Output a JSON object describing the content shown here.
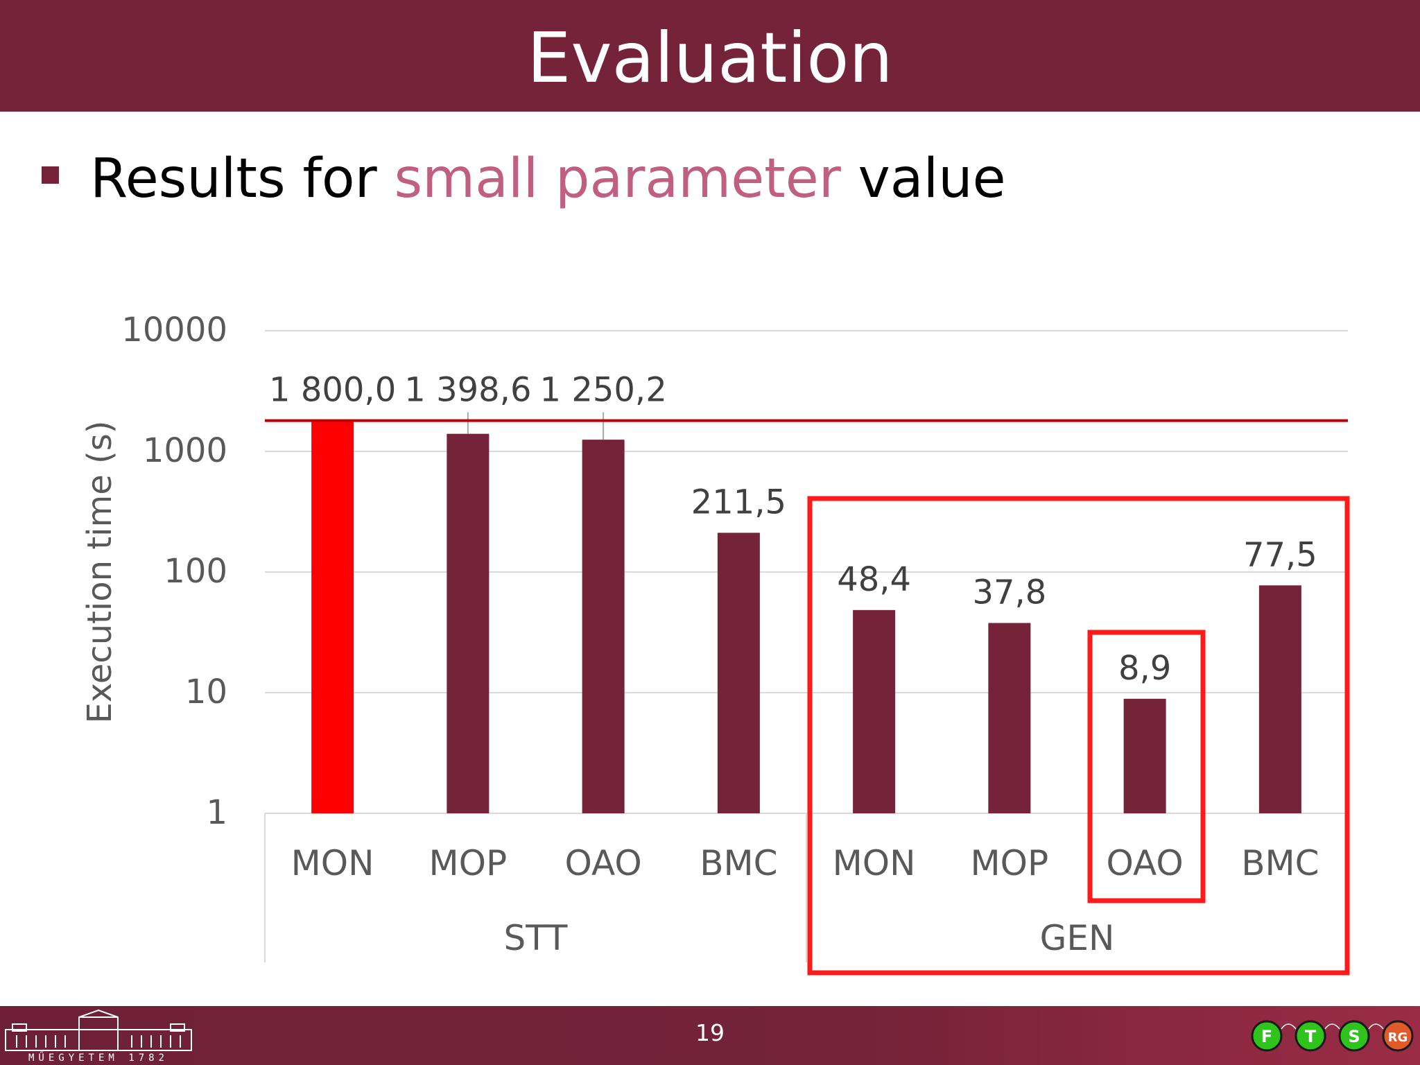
{
  "slide": {
    "title": "Evaluation",
    "bullet": {
      "before": "Results for ",
      "highlight": "small parameter",
      "after": " value"
    },
    "page_number": "19"
  },
  "logos": {
    "university_text": "MŰEGYETEM 1782",
    "group_letters": [
      "F",
      "T",
      "S",
      "RG"
    ]
  },
  "colors": {
    "title_bar": "#742338",
    "bar": "#742338",
    "timeout_bar": "#ff0000",
    "timeout_line": "#c00000",
    "highlight_box": "#ff1a1a",
    "highlight_text": "#c0607e"
  },
  "chart_data": {
    "type": "bar",
    "ylabel": "Execution time (s)",
    "yscale": "log",
    "ylim": [
      1,
      10000
    ],
    "yticks": [
      "1",
      "10",
      "100",
      "1000",
      "10000"
    ],
    "grid": true,
    "categories": [
      "MON",
      "MOP",
      "OAO",
      "BMC",
      "MON",
      "MOP",
      "OAO",
      "BMC"
    ],
    "groups": [
      {
        "name": "STT",
        "categories": [
          "MON",
          "MOP",
          "OAO",
          "BMC"
        ]
      },
      {
        "name": "GEN",
        "categories": [
          "MON",
          "MOP",
          "OAO",
          "BMC"
        ]
      }
    ],
    "values": [
      1800.0,
      1398.6,
      1250.2,
      211.5,
      48.4,
      37.8,
      8.9,
      77.5
    ],
    "data_labels": [
      "1 800,0",
      "1 398,6",
      "1 250,2",
      "211,5",
      "48,4",
      "37,8",
      "8,9",
      "77,5"
    ],
    "timeout_value": 1800.0,
    "timeout_bar_index": 0,
    "highlight_group": "GEN",
    "highlight_bar_index": 6
  }
}
